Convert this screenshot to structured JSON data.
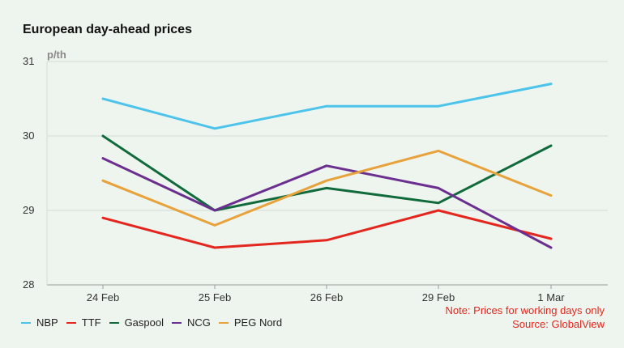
{
  "chart_data": {
    "type": "line",
    "title": "European day-ahead prices",
    "ylabel": "p/th",
    "categories": [
      "24 Feb",
      "25 Feb",
      "26 Feb",
      "29 Feb",
      "1 Mar"
    ],
    "ylim": [
      28,
      31
    ],
    "yticks": [
      "28",
      "29",
      "30",
      "31"
    ],
    "grid": true,
    "legend_position": "bottom-left",
    "series": [
      {
        "name": "NBP",
        "color": "#4cc3ea",
        "values": [
          30.5,
          30.1,
          30.4,
          30.4,
          30.7
        ]
      },
      {
        "name": "TTF",
        "color": "#e3261e",
        "values": [
          28.9,
          28.5,
          28.6,
          29.0,
          28.62
        ]
      },
      {
        "name": "Gaspool",
        "color": "#116a3b",
        "values": [
          30.0,
          29.0,
          29.3,
          29.1,
          29.87
        ]
      },
      {
        "name": "NCG",
        "color": "#6b2f8f",
        "values": [
          29.7,
          29.0,
          29.6,
          29.3,
          28.5
        ]
      },
      {
        "name": "PEG Nord",
        "color": "#e8a23c",
        "values": [
          29.4,
          28.8,
          29.4,
          29.8,
          29.2
        ]
      }
    ],
    "annotations": [
      "Note: Prices for working days only",
      "Source: GlobalView"
    ]
  }
}
